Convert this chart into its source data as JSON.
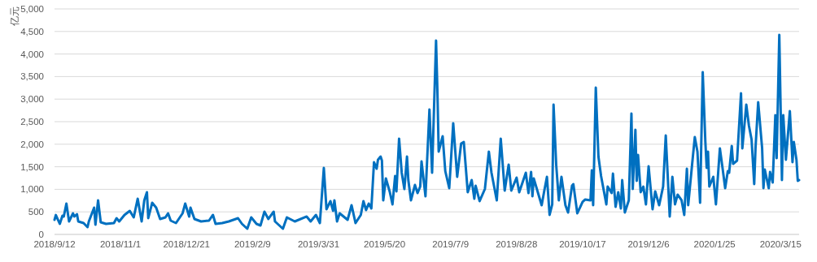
{
  "chart_data": {
    "type": "line",
    "ylabel": "亿元",
    "ylim": [
      0,
      5000
    ],
    "yticks": [
      0,
      500,
      {
        "value": 1000,
        "label": "1,000"
      },
      {
        "value": 1500,
        "label": "1,500"
      },
      {
        "value": 2000,
        "label": "2,000"
      },
      {
        "value": 2500,
        "label": "2,500"
      },
      {
        "value": 3000,
        "label": "3,000"
      },
      {
        "value": 3500,
        "label": "3,500"
      },
      {
        "value": 4000,
        "label": "4,000"
      },
      {
        "value": 4500,
        "label": "4,500"
      },
      {
        "value": 5000,
        "label": "5,000"
      }
    ],
    "xlim": [
      "2018-09-12",
      "2020-03-29"
    ],
    "xticks": [
      {
        "value": "2018-09-12",
        "label": "2018/9/12"
      },
      {
        "value": "2018-11-01",
        "label": "2018/11/1"
      },
      {
        "value": "2018-12-21",
        "label": "2018/12/21"
      },
      {
        "value": "2019-02-09",
        "label": "2019/2/9"
      },
      {
        "value": "2019-03-31",
        "label": "2019/3/31"
      },
      {
        "value": "2019-05-20",
        "label": "2019/5/20"
      },
      {
        "value": "2019-07-09",
        "label": "2019/7/9"
      },
      {
        "value": "2019-08-28",
        "label": "2019/8/28"
      },
      {
        "value": "2019-10-17",
        "label": "2019/10/17"
      },
      {
        "value": "2019-12-06",
        "label": "2019/12/6"
      },
      {
        "value": "2020-01-25",
        "label": "2020/1/25"
      },
      {
        "value": "2020-03-15",
        "label": "2020/3/15"
      }
    ],
    "grid": "y",
    "marker": "none",
    "line_style": "solid",
    "x": [
      "2018-09-12",
      "2018-09-13",
      "2018-09-16",
      "2018-09-18",
      "2018-09-19",
      "2018-09-21",
      "2018-09-23",
      "2018-09-26",
      "2018-09-27",
      "2018-09-29",
      "2018-09-30",
      "2018-10-04",
      "2018-10-07",
      "2018-10-08",
      "2018-10-12",
      "2018-10-13",
      "2018-10-15",
      "2018-10-17",
      "2018-10-21",
      "2018-10-27",
      "2018-10-29",
      "2018-10-31",
      "2018-11-04",
      "2018-11-08",
      "2018-11-11",
      "2018-11-14",
      "2018-11-17",
      "2018-11-19",
      "2018-11-21",
      "2018-11-22",
      "2018-11-25",
      "2018-11-28",
      "2018-12-01",
      "2018-12-05",
      "2018-12-07",
      "2018-12-09",
      "2018-12-13",
      "2018-12-18",
      "2018-12-20",
      "2018-12-23",
      "2018-12-24",
      "2018-12-27",
      "2019-01-01",
      "2019-01-07",
      "2019-01-10",
      "2019-01-12",
      "2019-01-17",
      "2019-01-22",
      "2019-01-29",
      "2019-02-01",
      "2019-02-05",
      "2019-02-08",
      "2019-02-12",
      "2019-02-15",
      "2019-02-18",
      "2019-02-21",
      "2019-02-25",
      "2019-02-26",
      "2019-03-04",
      "2019-03-07",
      "2019-03-13",
      "2019-03-22",
      "2019-03-25",
      "2019-03-29",
      "2019-04-01",
      "2019-04-04",
      "2019-04-06",
      "2019-04-09",
      "2019-04-11",
      "2019-04-12",
      "2019-04-14",
      "2019-04-16",
      "2019-04-22",
      "2019-04-25",
      "2019-04-28",
      "2019-05-02",
      "2019-05-04",
      "2019-05-06",
      "2019-05-08",
      "2019-05-10",
      "2019-05-12",
      "2019-05-14",
      "2019-05-15",
      "2019-05-17",
      "2019-05-18",
      "2019-05-19",
      "2019-05-21",
      "2019-05-24",
      "2019-05-26",
      "2019-05-28",
      "2019-05-29",
      "2019-05-31",
      "2019-06-02",
      "2019-06-04",
      "2019-06-06",
      "2019-06-07",
      "2019-06-09",
      "2019-06-12",
      "2019-06-14",
      "2019-06-16",
      "2019-06-17",
      "2019-06-20",
      "2019-06-23",
      "2019-06-25",
      "2019-06-28",
      "2019-06-29",
      "2019-06-30",
      "2019-07-03",
      "2019-07-05",
      "2019-07-08",
      "2019-07-11",
      "2019-07-14",
      "2019-07-17",
      "2019-07-19",
      "2019-07-22",
      "2019-07-25",
      "2019-07-27",
      "2019-07-28",
      "2019-07-31",
      "2019-08-04",
      "2019-08-07",
      "2019-08-09",
      "2019-08-13",
      "2019-08-16",
      "2019-08-19",
      "2019-08-22",
      "2019-08-24",
      "2019-08-28",
      "2019-08-30",
      "2019-09-04",
      "2019-09-06",
      "2019-09-08",
      "2019-09-09",
      "2019-09-10",
      "2019-09-16",
      "2019-09-18",
      "2019-09-20",
      "2019-09-22",
      "2019-09-24",
      "2019-09-25",
      "2019-09-27",
      "2019-09-29",
      "2019-10-01",
      "2019-10-04",
      "2019-10-06",
      "2019-10-09",
      "2019-10-10",
      "2019-10-13",
      "2019-10-17",
      "2019-10-19",
      "2019-10-23",
      "2019-10-24",
      "2019-10-25",
      "2019-10-27",
      "2019-10-29",
      "2019-10-31",
      "2019-11-04",
      "2019-11-05",
      "2019-11-08",
      "2019-11-09",
      "2019-11-11",
      "2019-11-13",
      "2019-11-15",
      "2019-11-16",
      "2019-11-18",
      "2019-11-21",
      "2019-11-23",
      "2019-11-24",
      "2019-11-26",
      "2019-11-27",
      "2019-11-28",
      "2019-11-30",
      "2019-12-02",
      "2019-12-04",
      "2019-12-06",
      "2019-12-09",
      "2019-12-11",
      "2019-12-14",
      "2019-12-17",
      "2019-12-19",
      "2019-12-22",
      "2019-12-24",
      "2019-12-26",
      "2019-12-28",
      "2019-12-31",
      "2020-01-02",
      "2020-01-04",
      "2020-01-05",
      "2020-01-08",
      "2020-01-10",
      "2020-01-12",
      "2020-01-14",
      "2020-01-16",
      "2020-01-18",
      "2020-01-19",
      "2020-01-20",
      "2020-01-21",
      "2020-01-24",
      "2020-01-26",
      "2020-01-29",
      "2020-01-31",
      "2020-02-02",
      "2020-02-04",
      "2020-02-05",
      "2020-02-07",
      "2020-02-08",
      "2020-02-11",
      "2020-02-14",
      "2020-02-15",
      "2020-02-18",
      "2020-02-20",
      "2020-02-22",
      "2020-02-24",
      "2020-02-25",
      "2020-02-27",
      "2020-03-01",
      "2020-03-02",
      "2020-03-03",
      "2020-03-06",
      "2020-03-07",
      "2020-03-09",
      "2020-03-11",
      "2020-03-12",
      "2020-03-14",
      "2020-03-16",
      "2020-03-17",
      "2020-03-19",
      "2020-03-22",
      "2020-03-24",
      "2020-03-25",
      "2020-03-27",
      "2020-03-28",
      "2020-03-29"
    ],
    "series": [
      {
        "color": "#0070c0",
        "values": [
          324,
          430,
          234,
          414,
          396,
          684,
          288,
          468,
          396,
          450,
          288,
          252,
          162,
          288,
          594,
          216,
          756,
          270,
          234,
          252,
          360,
          288,
          432,
          522,
          378,
          792,
          288,
          756,
          936,
          360,
          702,
          594,
          342,
          378,
          468,
          306,
          252,
          468,
          684,
          396,
          594,
          342,
          288,
          306,
          432,
          234,
          252,
          288,
          360,
          234,
          126,
          378,
          234,
          198,
          504,
          342,
          504,
          288,
          126,
          378,
          288,
          396,
          288,
          432,
          252,
          1475,
          558,
          738,
          522,
          756,
          288,
          468,
          324,
          648,
          252,
          432,
          738,
          540,
          684,
          576,
          1601,
          1457,
          1655,
          1727,
          1637,
          756,
          1241,
          936,
          666,
          1295,
          954,
          2123,
          1367,
          1007,
          1727,
          1205,
          756,
          1097,
          918,
          1061,
          1619,
          846,
          2770,
          1367,
          4300,
          3220,
          1835,
          2177,
          1403,
          1025,
          2465,
          1277,
          2015,
          2051,
          936,
          1205,
          792,
          1079,
          738,
          1007,
          1835,
          1367,
          756,
          2123,
          972,
          1547,
          972,
          1259,
          936,
          1367,
          918,
          1385,
          846,
          1241,
          648,
          972,
          1277,
          432,
          666,
          2878,
          1547,
          756,
          1277,
          648,
          486,
          1079,
          1115,
          468,
          720,
          774,
          756,
          1421,
          648,
          3256,
          1727,
          1295,
          666,
          1061,
          918,
          1349,
          612,
          936,
          576,
          1205,
          486,
          756,
          2680,
          1007,
          2321,
          1187,
          1763,
          936,
          1061,
          666,
          1511,
          558,
          954,
          648,
          1061,
          2195,
          396,
          1277,
          666,
          882,
          756,
          432,
          1457,
          648,
          1565,
          2159,
          1835,
          702,
          3598,
          2051,
          1475,
          1835,
          1061,
          1277,
          666,
          1907,
          1475,
          1025,
          1403,
          1367,
          1961,
          1565,
          1637,
          3130,
          1907,
          2878,
          2411,
          2105,
          1115,
          1925,
          2932,
          1907,
          1025,
          1439,
          1025,
          1385,
          1151,
          2644,
          1691,
          4426,
          1205,
          2644,
          1655,
          2734,
          1601,
          2051,
          1655,
          1187,
          1205
        ]
      }
    ]
  }
}
